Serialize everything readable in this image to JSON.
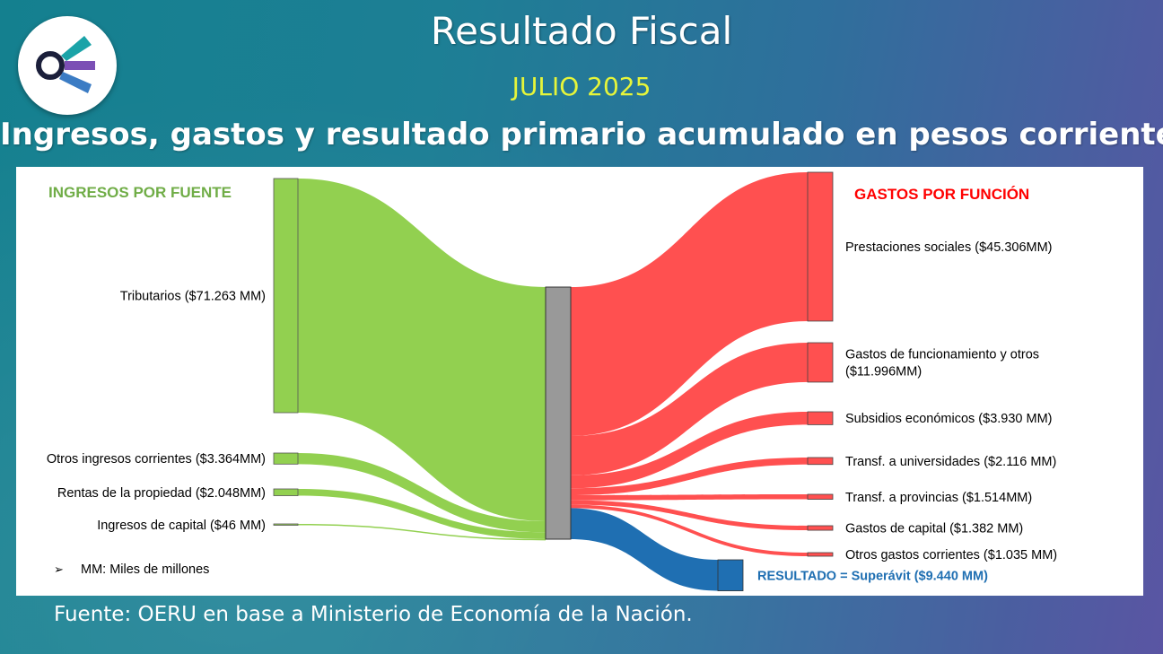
{
  "header": {
    "title": "Resultado Fiscal",
    "period": "JULIO 2025",
    "headline": "Ingresos, gastos y resultado primario acumulado en pesos corrientes"
  },
  "logo": {
    "icon": "oeru-logo-icon"
  },
  "footer": {
    "source": "Fuente: OERU en base a Ministerio de Economía de la Nación.",
    "note": "MM: Miles de millones"
  },
  "colors": {
    "ingresos": "#92d050",
    "gastos": "#ff5050",
    "resultado": "#1f6fb2",
    "hub": "#999999",
    "title_ingresos": "#70ad47",
    "title_gastos": "#ff0000",
    "title_resultado": "#1f6fb2"
  },
  "chart_data": {
    "type": "sankey",
    "unit": "MM",
    "left_title": "INGRESOS POR FUENTE",
    "right_title": "GASTOS POR FUNCIÓN",
    "sources": [
      {
        "label": "Tributarios ($71.263 MM)",
        "value": 71263
      },
      {
        "label": "Otros ingresos corrientes ($3.364MM)",
        "value": 3364
      },
      {
        "label": "Rentas de la propiedad ($2.048MM)",
        "value": 2048
      },
      {
        "label": "Ingresos de capital ($46 MM)",
        "value": 46
      }
    ],
    "targets": [
      {
        "label": [
          "Prestaciones sociales ($45.306MM)"
        ],
        "value": 45306
      },
      {
        "label": [
          "Gastos de funcionamiento y otros",
          "($11.996MM)"
        ],
        "value": 11996
      },
      {
        "label": [
          "Subsidios económicos ($3.930 MM)"
        ],
        "value": 3930
      },
      {
        "label": [
          "Transf. a universidades ($2.116 MM)"
        ],
        "value": 2116
      },
      {
        "label": [
          "Transf. a provincias ($1.514MM)"
        ],
        "value": 1514
      },
      {
        "label": [
          "Gastos de capital ($1.382 MM)"
        ],
        "value": 1382
      },
      {
        "label": [
          "Otros gastos corrientes ($1.035 MM)"
        ],
        "value": 1035
      }
    ],
    "result": {
      "label": "RESULTADO = Superávit ($9.440 MM)",
      "value": 9440
    }
  }
}
